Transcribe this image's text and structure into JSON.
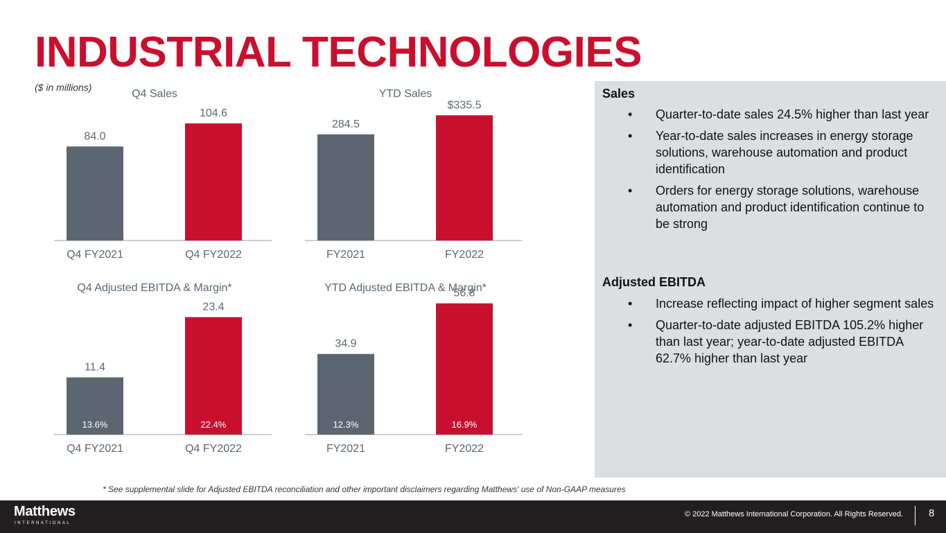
{
  "title": "INDUSTRIAL TECHNOLOGIES",
  "units_note": "($ in millions)",
  "colors": {
    "prior": "#5b6670",
    "current": "#c8102e",
    "accent": "#c8102e",
    "label": "#5b6670"
  },
  "chart_data": [
    {
      "type": "bar",
      "title": "Q4 Sales",
      "categories": [
        "Q4 FY2021",
        "Q4 FY2022"
      ],
      "values": [
        84.0,
        104.6
      ],
      "value_labels": [
        "84.0",
        "104.6"
      ],
      "ylim": [
        0,
        130
      ]
    },
    {
      "type": "bar",
      "title": "YTD Sales",
      "categories": [
        "FY2021",
        "FY2022"
      ],
      "values": [
        284.5,
        335.5
      ],
      "value_labels": [
        "284.5",
        "$335.5"
      ],
      "ylim": [
        0,
        390
      ]
    },
    {
      "type": "bar",
      "title": "Q4 Adjusted EBITDA & Margin*",
      "categories": [
        "Q4 FY2021",
        "Q4 FY2022"
      ],
      "values": [
        11.4,
        23.4
      ],
      "value_labels": [
        "11.4",
        "23.4"
      ],
      "margins": [
        "13.6%",
        "22.4%"
      ],
      "ylim": [
        0,
        29
      ]
    },
    {
      "type": "bar",
      "title": "YTD Adjusted EBITDA & Margin*",
      "categories": [
        "FY2021",
        "FY2022"
      ],
      "values": [
        34.9,
        56.8
      ],
      "value_labels": [
        "34.9",
        "56.8"
      ],
      "margins": [
        "12.3%",
        "16.9%"
      ],
      "ylim": [
        0,
        63
      ]
    }
  ],
  "panel": {
    "sections": [
      {
        "heading": "Sales",
        "bullets": [
          "Quarter-to-date sales 24.5% higher than last year",
          "Year-to-date sales increases in energy storage solutions, warehouse automation and product identification",
          "Orders for energy storage solutions, warehouse automation and product identification continue to be strong"
        ]
      },
      {
        "heading": "Adjusted EBITDA",
        "bullets": [
          "Increase reflecting impact of higher segment sales",
          "Quarter-to-date adjusted EBITDA 105.2% higher than last year; year-to-date adjusted EBITDA 62.7% higher than last year"
        ]
      }
    ],
    "bullet_char": "•"
  },
  "footnote": "* See supplemental slide for Adjusted EBITDA reconciliation and other important disclaimers regarding Matthews' use of Non-GAAP measures",
  "footer": {
    "logo": "Matthews",
    "logo_sub": "INTERNATIONAL",
    "copyright": "© 2022 Matthews International Corporation. All Rights Reserved.",
    "page_number": "8"
  }
}
